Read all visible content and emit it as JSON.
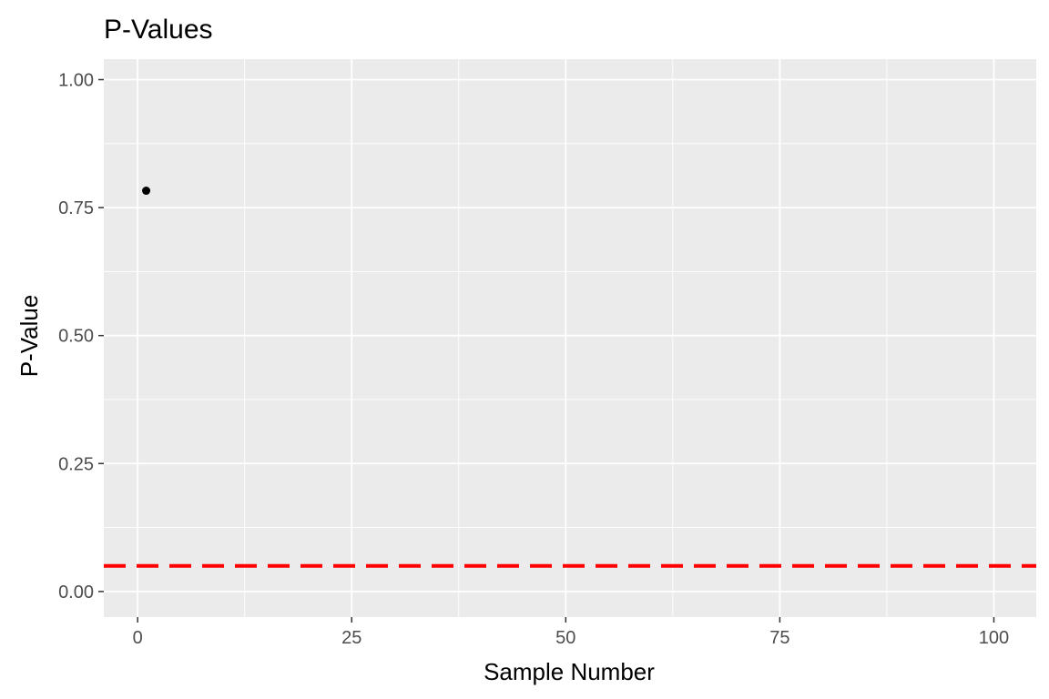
{
  "chart_data": {
    "type": "scatter",
    "title": "P-Values",
    "xlabel": "Sample Number",
    "ylabel": "P-Value",
    "xlim": [
      -3.95,
      104.95
    ],
    "ylim": [
      -0.05,
      1.04
    ],
    "x_ticks": [
      0,
      25,
      50,
      75,
      100
    ],
    "x_tick_labels": [
      "0",
      "25",
      "50",
      "75",
      "100"
    ],
    "x_minor_ticks": [
      12.5,
      37.5,
      62.5,
      87.5
    ],
    "y_ticks": [
      0,
      0.25,
      0.5,
      0.75,
      1.0
    ],
    "y_tick_labels": [
      "0.00",
      "0.25",
      "0.50",
      "0.75",
      "1.00"
    ],
    "y_minor_ticks": [
      0.125,
      0.375,
      0.625,
      0.875
    ],
    "grid": true,
    "panel_background": "#ebebeb",
    "grid_color": "#ffffff",
    "series": [
      {
        "points": [
          {
            "x": 1,
            "y": 0.783
          }
        ],
        "color": "#000000"
      }
    ],
    "reference_lines": [
      {
        "orientation": "horizontal",
        "y": 0.05,
        "color": "#ff0000",
        "style": "dashed"
      }
    ]
  }
}
